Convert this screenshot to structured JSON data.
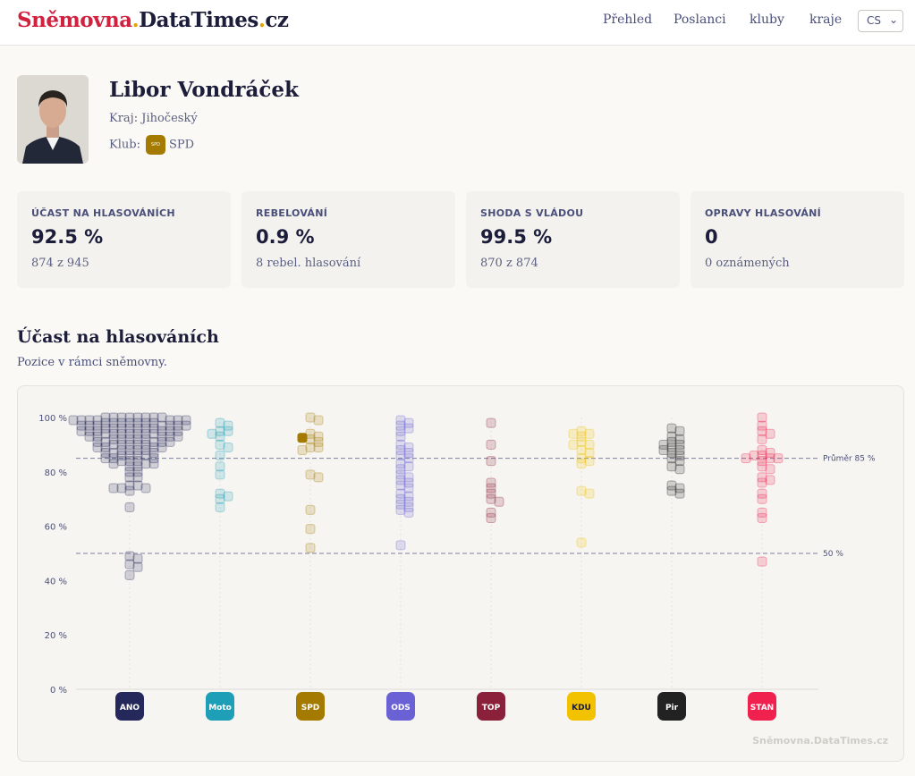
{
  "header": {
    "logo": {
      "part1": "Sněmovna",
      "dot": ".",
      "part2": "DataTimes",
      "part3": ".cz"
    },
    "nav": [
      "Přehled",
      "Poslanci",
      "kluby",
      "kraje"
    ],
    "lang": "CS"
  },
  "profile": {
    "name": "Libor Vondráček",
    "kraj_label": "Kraj:",
    "kraj": "Jihočeský",
    "klub_label": "Klub:",
    "klub_badge": "SPD",
    "klub": "SPD"
  },
  "stats": [
    {
      "label": "ÚČAST NA HLASOVÁNÍCH",
      "value": "92.5 %",
      "sub": "874 z 945"
    },
    {
      "label": "REBELOVÁNÍ",
      "value": "0.9 %",
      "sub": "8 rebel. hlasování"
    },
    {
      "label": "SHODA S VLÁDOU",
      "value": "99.5 %",
      "sub": "870 z 874"
    },
    {
      "label": "OPRAVY HLASOVÁNÍ",
      "value": "0",
      "sub": "0 oznámených"
    }
  ],
  "section": {
    "title": "Účast na hlasováních",
    "subtitle": "Pozice v rámci sněmovny."
  },
  "watermark": "Sněmovna.DataTimes.cz",
  "chart_data": {
    "type": "scatter",
    "ylim": [
      0,
      100
    ],
    "yticks": [
      0,
      20,
      40,
      60,
      80,
      100
    ],
    "ytick_labels": [
      "0 %",
      "20 %",
      "40 %",
      "60 %",
      "80 %",
      "100 %"
    ],
    "reference_lines": [
      {
        "value": 85,
        "label": "Průměr 85 %"
      },
      {
        "value": 50,
        "label": "50 %"
      }
    ],
    "highlight": {
      "party": "SPD",
      "value": 92.5
    },
    "series": [
      {
        "name": "ANO",
        "color": "#25285a",
        "values": [
          100,
          100,
          100,
          100,
          100,
          100,
          100,
          100,
          99,
          99,
          99,
          99,
          99,
          99,
          99,
          98,
          98,
          98,
          98,
          98,
          98,
          98,
          97,
          97,
          97,
          97,
          97,
          97,
          97,
          96,
          96,
          96,
          96,
          96,
          96,
          96,
          95,
          95,
          95,
          95,
          95,
          95,
          94,
          94,
          94,
          94,
          94,
          94,
          94,
          93,
          93,
          93,
          93,
          93,
          92,
          92,
          92,
          92,
          92,
          91,
          91,
          91,
          91,
          91,
          90,
          90,
          90,
          90,
          90,
          89,
          89,
          89,
          89,
          88,
          88,
          88,
          88,
          87,
          87,
          87,
          86,
          86,
          86,
          86,
          85,
          85,
          85,
          84,
          84,
          84,
          83,
          83,
          83,
          82,
          82,
          80,
          80,
          78,
          78,
          75,
          75,
          74,
          74,
          74,
          73,
          67,
          49,
          48,
          46,
          45,
          42
        ]
      },
      {
        "name": "Moto",
        "color": "#1f9eb8",
        "values": [
          98,
          97,
          95,
          95,
          94,
          93,
          90,
          89,
          86,
          82,
          79,
          72,
          71,
          70,
          67
        ]
      },
      {
        "name": "SPD",
        "color": "#a47a00",
        "values": [
          100,
          99,
          94,
          93,
          92.5,
          92,
          91,
          89,
          89,
          88,
          79,
          78,
          66,
          59,
          52
        ]
      },
      {
        "name": "ODS",
        "color": "#6a62d4",
        "values": [
          99,
          98,
          97,
          96,
          95,
          93,
          90,
          89,
          88,
          87,
          86,
          85,
          83,
          82,
          81,
          79,
          78,
          77,
          76,
          75,
          74,
          72,
          71,
          70,
          69,
          68,
          67,
          66,
          65,
          53
        ]
      },
      {
        "name": "TOP",
        "color": "#8a2039",
        "values": [
          98,
          90,
          84,
          76,
          74,
          72,
          70,
          69,
          65,
          63
        ]
      },
      {
        "name": "KDU",
        "color": "#f2c200",
        "values": [
          95,
          94,
          94,
          93,
          91,
          90,
          90,
          88,
          87,
          85,
          84,
          83,
          73,
          72,
          54
        ]
      },
      {
        "name": "Pir",
        "color": "#222222",
        "values": [
          96,
          95,
          93,
          92,
          91,
          90,
          90,
          89,
          88,
          88,
          87,
          86,
          85,
          84,
          82,
          81,
          75,
          74,
          73,
          72
        ]
      },
      {
        "name": "STAN",
        "color": "#f0204f",
        "values": [
          100,
          97,
          95,
          94,
          92,
          88,
          87,
          86,
          86,
          85,
          85,
          85,
          84,
          82,
          81,
          78,
          77,
          76,
          72,
          70,
          65,
          63,
          47
        ]
      }
    ]
  }
}
